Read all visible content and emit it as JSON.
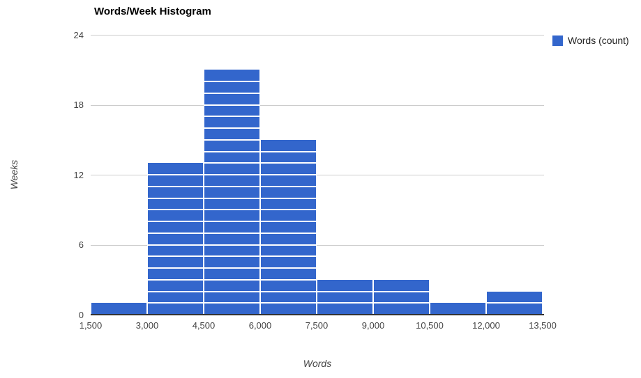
{
  "chart": {
    "title": "Words/Week Histogram",
    "legend": {
      "label": "Words (count)"
    },
    "x_axis": {
      "title": "Words",
      "tick_labels": [
        "1,500",
        "3,000",
        "4,500",
        "6,000",
        "7,500",
        "9,000",
        "10,500",
        "12,000",
        "13,500"
      ]
    },
    "y_axis": {
      "title": "Weeks",
      "tick_labels": [
        "0",
        "6",
        "12",
        "18",
        "24"
      ]
    },
    "colors": {
      "bar": "#3366cc",
      "gridline": "#cccccc",
      "axis_line": "#333333",
      "tick_text": "#444444",
      "background": "#ffffff"
    }
  },
  "chart_data": {
    "type": "bar",
    "subtype": "histogram",
    "title": "Words/Week Histogram",
    "xlabel": "Words",
    "ylabel": "Weeks",
    "legend_entries": [
      "Words (count)"
    ],
    "legend_position": "right",
    "grid": true,
    "bin_edges": [
      1500,
      3000,
      4500,
      6000,
      7500,
      9000,
      10500,
      12000,
      13500
    ],
    "categories": [
      "1,500-3,000",
      "3,000-4,500",
      "4,500-6,000",
      "6,000-7,500",
      "7,500-9,000",
      "9,000-10,500",
      "10,500-12,000",
      "12,000-13,500"
    ],
    "values": [
      1,
      13,
      21,
      15,
      3,
      3,
      1,
      2
    ],
    "y_ticks": [
      0,
      6,
      12,
      18,
      24
    ],
    "ylim": [
      0,
      24
    ],
    "unit_separator_lines": true
  }
}
